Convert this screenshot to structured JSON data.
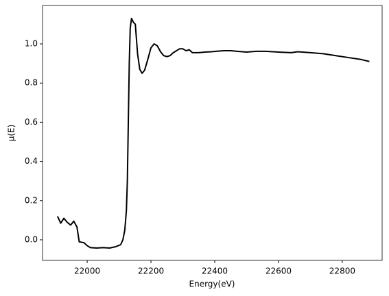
{
  "chart_data": {
    "type": "line",
    "x_label": "Energy(eV)",
    "y_label": "μ(E)",
    "x": [
      21907,
      21917,
      21927,
      21937,
      21948,
      21958,
      21968,
      21975,
      21990,
      22000,
      22010,
      22030,
      22050,
      22070,
      22090,
      22105,
      22112,
      22118,
      22123,
      22126,
      22129,
      22132,
      22135,
      22139,
      22145,
      22151,
      22158,
      22165,
      22172,
      22180,
      22190,
      22200,
      22210,
      22220,
      22230,
      22240,
      22250,
      22260,
      22270,
      22280,
      22290,
      22300,
      22310,
      22320,
      22330,
      22350,
      22370,
      22390,
      22410,
      22430,
      22450,
      22470,
      22500,
      22530,
      22560,
      22600,
      22640,
      22660,
      22700,
      22740,
      22780,
      22820,
      22860,
      22885
    ],
    "series": [
      {
        "color": "#000000",
        "values": [
          0.12,
          0.085,
          0.11,
          0.09,
          0.075,
          0.095,
          0.065,
          -0.01,
          -0.015,
          -0.03,
          -0.04,
          -0.042,
          -0.04,
          -0.042,
          -0.035,
          -0.025,
          0.0,
          0.05,
          0.15,
          0.3,
          0.6,
          0.9,
          1.08,
          1.13,
          1.11,
          1.1,
          0.95,
          0.87,
          0.85,
          0.865,
          0.92,
          0.98,
          1.0,
          0.99,
          0.96,
          0.94,
          0.935,
          0.94,
          0.955,
          0.965,
          0.975,
          0.975,
          0.965,
          0.97,
          0.955,
          0.955,
          0.958,
          0.96,
          0.963,
          0.965,
          0.965,
          0.962,
          0.958,
          0.962,
          0.962,
          0.958,
          0.955,
          0.96,
          0.955,
          0.95,
          0.94,
          0.93,
          0.92,
          0.91
        ]
      }
    ],
    "xlim": [
      21860,
      22925
    ],
    "ylim": [
      -0.105,
      1.196
    ],
    "xticks": [
      22000,
      22200,
      22400,
      22600,
      22800
    ],
    "yticks": [
      {
        "value": 0,
        "label": "0.0"
      },
      {
        "value": 0.2,
        "label": "0.2"
      },
      {
        "value": 0.4,
        "label": "0.4"
      },
      {
        "value": 0.6,
        "label": "0.6"
      },
      {
        "value": 0.8,
        "label": "0.8"
      },
      {
        "value": 1.0,
        "label": "1.0"
      }
    ],
    "grid": false
  }
}
